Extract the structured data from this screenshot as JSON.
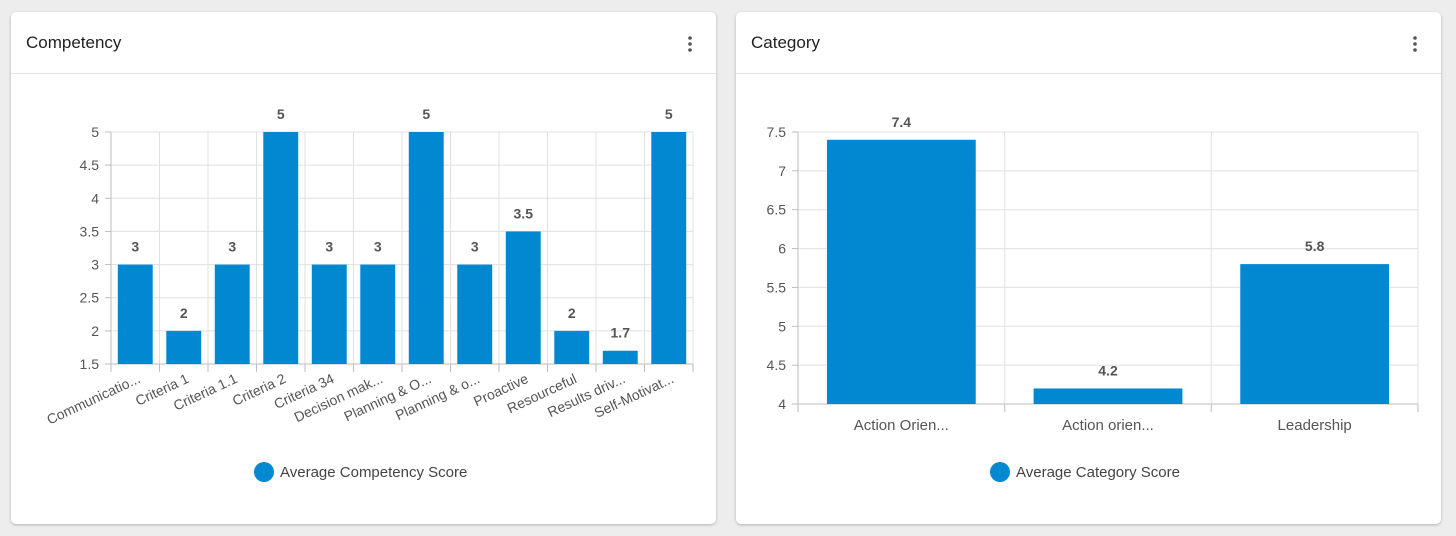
{
  "colors": {
    "bar": "#0288d1",
    "grid": "#e0e0e0",
    "axis": "#bdbdbd",
    "label": "#555555"
  },
  "cards": [
    {
      "title": "Competency",
      "menu_icon": "kebab-menu-icon",
      "legend_label": "Average Competency Score"
    },
    {
      "title": "Category",
      "menu_icon": "kebab-menu-icon",
      "legend_label": "Average Category Score"
    }
  ],
  "chart_data": [
    {
      "type": "bar",
      "title": "Competency",
      "categories": [
        "Communicatio...",
        "Criteria 1",
        "Criteria 1.1",
        "Criteria 2",
        "Criteria 34",
        "Decision mak...",
        "Planning & O...",
        "Planning & o...",
        "Proactive",
        "Resourceful",
        "Results driv...",
        "Self-Motivat..."
      ],
      "series": [
        {
          "name": "Average Competency Score",
          "values": [
            3,
            2,
            3,
            5,
            3,
            3,
            5,
            3,
            3.5,
            2,
            1.7,
            5
          ]
        }
      ],
      "data_labels": [
        "3",
        "2",
        "3",
        "5",
        "3",
        "3",
        "5",
        "3",
        "3.5",
        "2",
        "1.7",
        "5"
      ],
      "yticks": [
        "1.5",
        "2",
        "2.5",
        "3",
        "3.5",
        "4",
        "4.5",
        "5"
      ],
      "ylim": [
        1.5,
        5
      ],
      "grid": true,
      "legend": "bottom-center",
      "xlabel": "",
      "ylabel": ""
    },
    {
      "type": "bar",
      "title": "Category",
      "categories": [
        "Action Orien...",
        "Action orien...",
        "Leadership"
      ],
      "series": [
        {
          "name": "Average Category Score",
          "values": [
            7.4,
            4.2,
            5.8
          ]
        }
      ],
      "data_labels": [
        "7.4",
        "4.2",
        "5.8"
      ],
      "yticks": [
        "4",
        "4.5",
        "5",
        "5.5",
        "6",
        "6.5",
        "7",
        "7.5"
      ],
      "ylim": [
        4,
        7.5
      ],
      "grid": true,
      "legend": "bottom-center",
      "xlabel": "",
      "ylabel": ""
    }
  ]
}
